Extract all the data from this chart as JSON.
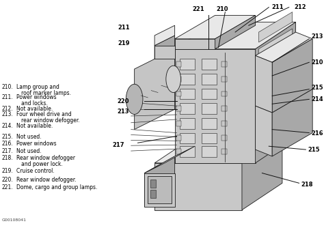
{
  "bg_color": "#f5f5f0",
  "legend_items": [
    {
      "num": "210",
      "text1": "Lamp group and",
      "text2": "roof marker lamps."
    },
    {
      "num": "211",
      "text1": "Power windows",
      "text2": "and locks."
    },
    {
      "num": "212",
      "text1": "Not available.",
      "text2": null
    },
    {
      "num": "213",
      "text1": "Four wheel drive and",
      "text2": "rear window defogger."
    },
    {
      "num": "214",
      "text1": "Not available.",
      "text2": null
    },
    {
      "num": "215",
      "text1": "Not used.",
      "text2": null
    },
    {
      "num": "216",
      "text1": "Power windows",
      "text2": null
    },
    {
      "num": "217",
      "text1": "Not used.",
      "text2": null
    },
    {
      "num": "218",
      "text1": "Rear window defogger",
      "text2": "and power lock."
    },
    {
      "num": "219",
      "text1": "Cruise control.",
      "text2": null
    },
    {
      "num": "220",
      "text1": "Rear window defogger.",
      "text2": null
    },
    {
      "num": "221",
      "text1": "Dome, cargo and group lamps.",
      "text2": null
    }
  ],
  "figure_id": "G00108041",
  "text_color": "#000000",
  "edge_color": "#1a1a1a",
  "face_light": "#e8e8e8",
  "face_mid": "#c8c8c8",
  "face_dark": "#a8a8a8",
  "face_darker": "#888888"
}
